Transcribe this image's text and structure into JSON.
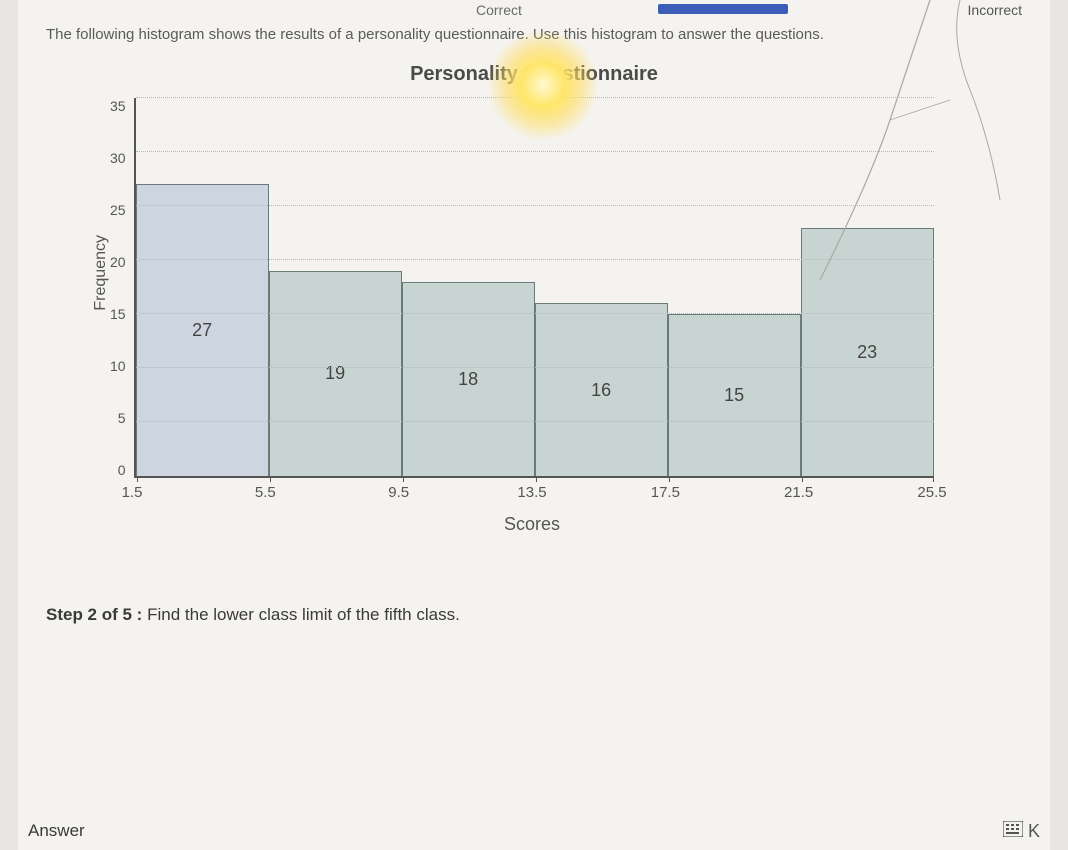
{
  "header": {
    "correct_label": "Correct",
    "incorrect_label": "Incorrect"
  },
  "intro_text": "The following histogram shows the results of a personality questionnaire. Use this histogram to answer the questions.",
  "chart": {
    "type": "histogram",
    "title": "Personality Questionnaire",
    "ylabel": "Frequency",
    "xlabel": "Scores",
    "ylim": [
      0,
      35
    ],
    "ytick_step": 5,
    "yticks": [
      "35",
      "30",
      "25",
      "20",
      "15",
      "10",
      "5",
      "0"
    ],
    "xticks": [
      "1.5",
      "5.5",
      "9.5",
      "13.5",
      "17.5",
      "21.5",
      "25.5"
    ],
    "values": [
      27,
      19,
      18,
      16,
      15,
      23
    ],
    "bar_fill_first": "#cdd5e0",
    "bar_fill": "#c8d4d2",
    "bar_border": "#6b7a78",
    "grid_color": "#b8b8b2",
    "axis_color": "#555555",
    "background_color": "#f5f3ef",
    "title_fontsize": 20,
    "label_fontsize": 16,
    "tick_fontsize": 14,
    "value_fontsize": 18
  },
  "step": {
    "prefix": "Step 2 of 5 :",
    "text": "Find the lower class limit of the fifth class."
  },
  "answer_label": "Answer",
  "calc_label": "K"
}
